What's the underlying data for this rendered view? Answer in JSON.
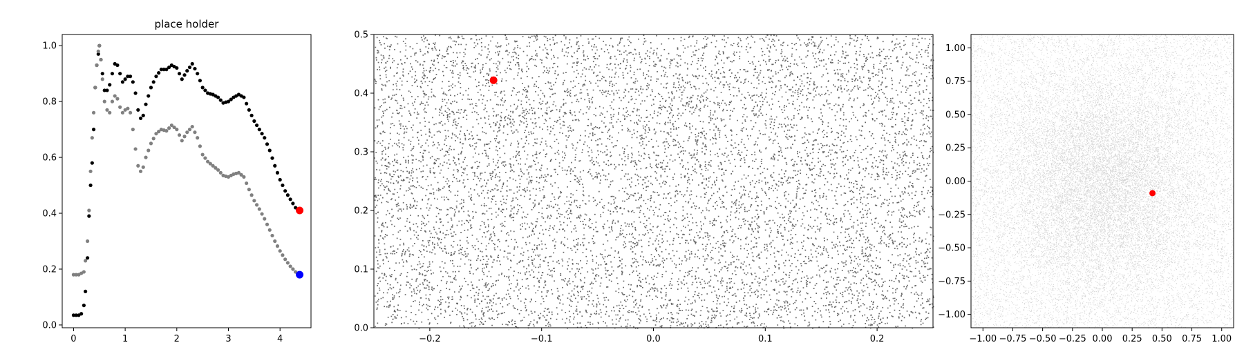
{
  "chart_data": [
    {
      "type": "scatter",
      "title": "place holder",
      "xlabel": "",
      "ylabel": "",
      "xlim": [
        -0.22,
        4.6
      ],
      "ylim": [
        -0.01,
        1.04
      ],
      "xticks": [
        "0",
        "1",
        "2",
        "3",
        "4"
      ],
      "yticks": [
        "0.0",
        "0.2",
        "0.4",
        "0.6",
        "0.8",
        "1.0"
      ],
      "grid": false,
      "series": [
        {
          "color": "#000000",
          "points": [
            [
              0.0,
              0.035
            ],
            [
              0.1,
              0.035
            ],
            [
              0.15,
              0.04
            ],
            [
              0.2,
              0.07
            ],
            [
              0.23,
              0.12
            ],
            [
              0.27,
              0.24
            ],
            [
              0.3,
              0.39
            ],
            [
              0.33,
              0.5
            ],
            [
              0.36,
              0.58
            ],
            [
              0.39,
              0.7
            ],
            [
              0.42,
              0.85
            ],
            [
              0.45,
              0.93
            ],
            [
              0.48,
              0.97
            ],
            [
              0.5,
              1.0
            ],
            [
              0.53,
              0.95
            ],
            [
              0.56,
              0.9
            ],
            [
              0.6,
              0.84
            ],
            [
              0.65,
              0.84
            ],
            [
              0.7,
              0.86
            ],
            [
              0.75,
              0.9
            ],
            [
              0.8,
              0.935
            ],
            [
              0.85,
              0.93
            ],
            [
              0.9,
              0.9
            ],
            [
              0.95,
              0.87
            ],
            [
              1.0,
              0.88
            ],
            [
              1.05,
              0.89
            ],
            [
              1.1,
              0.89
            ],
            [
              1.15,
              0.87
            ],
            [
              1.2,
              0.83
            ],
            [
              1.25,
              0.77
            ],
            [
              1.3,
              0.74
            ],
            [
              1.35,
              0.75
            ],
            [
              1.4,
              0.79
            ],
            [
              1.5,
              0.85
            ],
            [
              1.6,
              0.89
            ],
            [
              1.7,
              0.915
            ],
            [
              1.8,
              0.915
            ],
            [
              1.9,
              0.93
            ],
            [
              2.0,
              0.92
            ],
            [
              2.1,
              0.88
            ],
            [
              2.2,
              0.91
            ],
            [
              2.3,
              0.935
            ],
            [
              2.4,
              0.9
            ],
            [
              2.5,
              0.85
            ],
            [
              2.6,
              0.83
            ],
            [
              2.7,
              0.825
            ],
            [
              2.8,
              0.815
            ],
            [
              2.9,
              0.795
            ],
            [
              3.0,
              0.8
            ],
            [
              3.1,
              0.815
            ],
            [
              3.2,
              0.825
            ],
            [
              3.3,
              0.815
            ],
            [
              3.4,
              0.77
            ],
            [
              3.5,
              0.73
            ],
            [
              3.6,
              0.7
            ],
            [
              3.7,
              0.67
            ],
            [
              3.8,
              0.625
            ],
            [
              3.9,
              0.57
            ],
            [
              4.0,
              0.52
            ],
            [
              4.1,
              0.48
            ],
            [
              4.2,
              0.45
            ],
            [
              4.3,
              0.42
            ],
            [
              4.38,
              0.41
            ]
          ]
        },
        {
          "color": "#808080",
          "points": [
            [
              0.0,
              0.18
            ],
            [
              0.1,
              0.18
            ],
            [
              0.15,
              0.185
            ],
            [
              0.2,
              0.19
            ],
            [
              0.23,
              0.23
            ],
            [
              0.27,
              0.3
            ],
            [
              0.3,
              0.41
            ],
            [
              0.33,
              0.55
            ],
            [
              0.36,
              0.67
            ],
            [
              0.39,
              0.76
            ],
            [
              0.42,
              0.85
            ],
            [
              0.45,
              0.93
            ],
            [
              0.48,
              0.98
            ],
            [
              0.5,
              1.0
            ],
            [
              0.53,
              0.95
            ],
            [
              0.56,
              0.88
            ],
            [
              0.6,
              0.8
            ],
            [
              0.65,
              0.77
            ],
            [
              0.7,
              0.76
            ],
            [
              0.75,
              0.8
            ],
            [
              0.8,
              0.82
            ],
            [
              0.85,
              0.81
            ],
            [
              0.9,
              0.78
            ],
            [
              0.95,
              0.76
            ],
            [
              1.0,
              0.77
            ],
            [
              1.05,
              0.775
            ],
            [
              1.1,
              0.76
            ],
            [
              1.15,
              0.7
            ],
            [
              1.2,
              0.63
            ],
            [
              1.25,
              0.57
            ],
            [
              1.3,
              0.55
            ],
            [
              1.35,
              0.565
            ],
            [
              1.4,
              0.6
            ],
            [
              1.5,
              0.65
            ],
            [
              1.6,
              0.685
            ],
            [
              1.7,
              0.7
            ],
            [
              1.8,
              0.695
            ],
            [
              1.9,
              0.715
            ],
            [
              2.0,
              0.7
            ],
            [
              2.1,
              0.66
            ],
            [
              2.2,
              0.69
            ],
            [
              2.3,
              0.71
            ],
            [
              2.4,
              0.67
            ],
            [
              2.5,
              0.61
            ],
            [
              2.6,
              0.585
            ],
            [
              2.7,
              0.57
            ],
            [
              2.8,
              0.555
            ],
            [
              2.9,
              0.535
            ],
            [
              3.0,
              0.53
            ],
            [
              3.1,
              0.54
            ],
            [
              3.2,
              0.545
            ],
            [
              3.3,
              0.53
            ],
            [
              3.4,
              0.485
            ],
            [
              3.5,
              0.445
            ],
            [
              3.6,
              0.415
            ],
            [
              3.7,
              0.38
            ],
            [
              3.8,
              0.34
            ],
            [
              3.9,
              0.3
            ],
            [
              4.0,
              0.265
            ],
            [
              4.1,
              0.235
            ],
            [
              4.2,
              0.21
            ],
            [
              4.3,
              0.19
            ],
            [
              4.38,
              0.18
            ]
          ]
        }
      ],
      "markers": [
        {
          "x": 4.38,
          "y": 0.41,
          "color": "#ff0000"
        },
        {
          "x": 4.38,
          "y": 0.18,
          "color": "#0000ff"
        }
      ]
    },
    {
      "type": "scatter",
      "title": "",
      "xlabel": "",
      "ylabel": "",
      "xlim": [
        -0.25,
        0.25
      ],
      "ylim": [
        0.0,
        0.5
      ],
      "xticks": [
        "−0.2",
        "−0.1",
        "0.0",
        "0.1",
        "0.2"
      ],
      "yticks": [
        "0.0",
        "0.1",
        "0.2",
        "0.3",
        "0.4",
        "0.5"
      ],
      "grid": false,
      "point_color": "#000000",
      "point_count": 9000,
      "distribution": "uniform",
      "markers": [
        {
          "x": -0.143,
          "y": 0.422,
          "color": "#ff0000"
        }
      ]
    },
    {
      "type": "scatter",
      "title": "",
      "xlabel": "",
      "ylabel": "",
      "xlim": [
        -1.1,
        1.1
      ],
      "ylim": [
        -1.1,
        1.1
      ],
      "xticks": [
        "−1.00",
        "−0.75",
        "−0.50",
        "−0.25",
        "0.00",
        "0.25",
        "0.50",
        "0.75",
        "1.00"
      ],
      "yticks": [
        "−1.00",
        "−0.75",
        "−0.50",
        "−0.25",
        "0.00",
        "0.25",
        "0.50",
        "0.75",
        "1.00"
      ],
      "grid": false,
      "point_color": "#000000",
      "point_count": 24000,
      "distribution": "dense-center",
      "markers": [
        {
          "x": 0.42,
          "y": -0.09,
          "color": "#ff0000"
        }
      ]
    }
  ]
}
